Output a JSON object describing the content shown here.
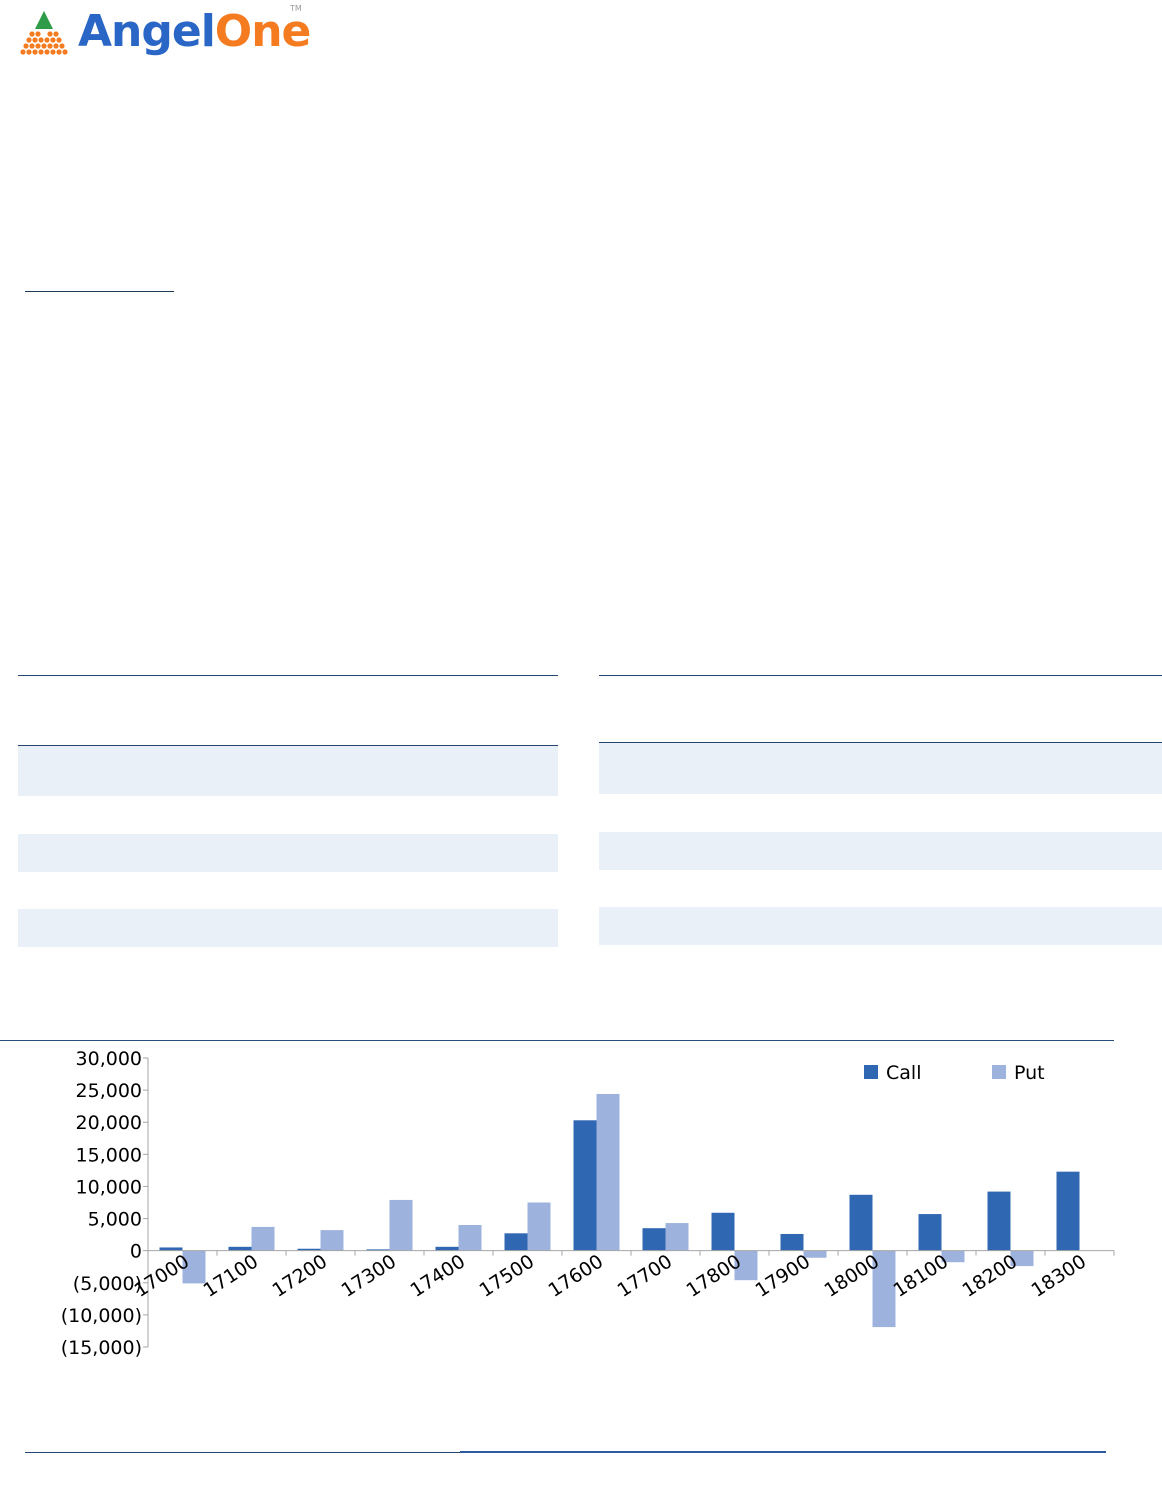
{
  "brand": {
    "name_part1": "Angel",
    "name_part2": "One",
    "trademark": "TM",
    "colors": {
      "blue": "#2a66c5",
      "orange": "#f47b20",
      "green": "#2e9c48"
    }
  },
  "chart_data": {
    "type": "bar",
    "categories": [
      "17000",
      "17100",
      "17200",
      "17300",
      "17400",
      "17500",
      "17600",
      "17700",
      "17800",
      "17900",
      "18000",
      "18100",
      "18200",
      "18300"
    ],
    "series": [
      {
        "name": "Call",
        "color": "#2f67b2",
        "values": [
          500,
          600,
          300,
          200,
          600,
          2700,
          20300,
          3500,
          5900,
          2600,
          8700,
          5700,
          9200,
          12300
        ]
      },
      {
        "name": "Put",
        "color": "#9db2dc",
        "values": [
          -5100,
          3700,
          3200,
          7900,
          4000,
          7500,
          24400,
          4300,
          -4600,
          -1100,
          -11900,
          -1800,
          -2400,
          null
        ]
      }
    ],
    "ylim": [
      -15000,
      30000
    ],
    "yticks": [
      {
        "value": 30000,
        "label": "30,000"
      },
      {
        "value": 25000,
        "label": "25,000"
      },
      {
        "value": 20000,
        "label": "20,000"
      },
      {
        "value": 15000,
        "label": "15,000"
      },
      {
        "value": 10000,
        "label": "10,000"
      },
      {
        "value": 5000,
        "label": "5,000"
      },
      {
        "value": 0,
        "label": "0"
      },
      {
        "value": -5000,
        "label": "(5,000)"
      },
      {
        "value": -10000,
        "label": "(10,000)"
      },
      {
        "value": -15000,
        "label": "(15,000)"
      }
    ],
    "grid": false,
    "legend_position": "top-right",
    "xlabel": "",
    "ylabel": "",
    "title": ""
  }
}
